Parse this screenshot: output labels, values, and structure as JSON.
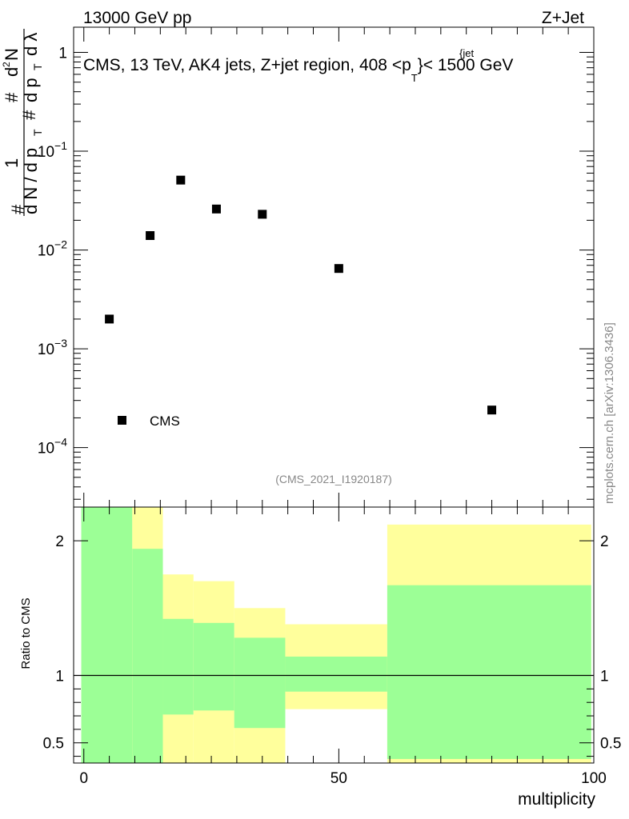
{
  "header": {
    "left_label": "13000 GeV pp",
    "right_label": "Z+Jet"
  },
  "chart_data": [
    {
      "type": "scatter",
      "panel": "main",
      "title": "CMS, 13 TeV, AK4 jets, Z+jet region, 408 <p",
      "title_super": "{jet",
      "title_sub": "T",
      "title_end": "}< 1500 GeV",
      "ylabel_parts": {
        "hash1": "#",
        "one": "1",
        "dN": "d N / d p",
        "sub1": "T",
        "hash2": "#",
        "dpT": "d p",
        "sub2": "T",
        "d2N": "d",
        "two": "2",
        "N": "N",
        "dlambda": "d λ"
      },
      "y_scale": "log",
      "ylim": [
        2.5e-05,
        1.8
      ],
      "xlim": [
        -2,
        100
      ],
      "y_ticks": [
        {
          "value": 0.0001,
          "base": "10",
          "exp": "−4"
        },
        {
          "value": 0.001,
          "base": "10",
          "exp": "−3"
        },
        {
          "value": 0.01,
          "base": "10",
          "exp": "−2"
        },
        {
          "value": 0.1,
          "base": "10",
          "exp": "−1"
        },
        {
          "value": 1,
          "base": "1",
          "exp": ""
        }
      ],
      "series": [
        {
          "name": "CMS",
          "color": "#000000",
          "marker": "square",
          "x": [
            5,
            13,
            19,
            26,
            35,
            50,
            80
          ],
          "y": [
            0.002,
            0.014,
            0.051,
            0.026,
            0.023,
            0.0065,
            0.00024
          ]
        }
      ],
      "legend_position": "bottom-left",
      "annotation": "(CMS_2021_I1920187)",
      "side_label": "mcplots.cern.ch [arXiv:1306.3436]"
    },
    {
      "type": "area",
      "panel": "ratio",
      "ylabel": "Ratio to CMS",
      "xlabel": "multiplicity",
      "xlim": [
        -2,
        100
      ],
      "ylim": [
        0.35,
        2.25
      ],
      "x_ticks": [
        0,
        50,
        100
      ],
      "y_ticks": [
        0.5,
        1,
        2
      ],
      "reference_line": 1,
      "bands": [
        {
          "x0": -0.5,
          "x1": 9.5,
          "green_lo": 0.35,
          "green_hi": 2.25,
          "yellow_lo": 0.35,
          "yellow_hi": 2.25
        },
        {
          "x0": 9.5,
          "x1": 15.5,
          "green_lo": 0.35,
          "green_hi": 1.94,
          "yellow_lo": 0.35,
          "yellow_hi": 2.25
        },
        {
          "x0": 15.5,
          "x1": 21.5,
          "green_lo": 0.71,
          "green_hi": 1.42,
          "yellow_lo": 0.35,
          "yellow_hi": 1.75
        },
        {
          "x0": 21.5,
          "x1": 29.5,
          "green_lo": 0.74,
          "green_hi": 1.39,
          "yellow_lo": 0.35,
          "yellow_hi": 1.7
        },
        {
          "x0": 29.5,
          "x1": 39.5,
          "green_lo": 0.61,
          "green_hi": 1.28,
          "yellow_lo": 0.35,
          "yellow_hi": 1.5
        },
        {
          "x0": 39.5,
          "x1": 59.5,
          "green_lo": 0.88,
          "green_hi": 1.14,
          "yellow_lo": 0.75,
          "yellow_hi": 1.38
        },
        {
          "x0": 59.5,
          "x1": 99.5,
          "green_lo": 0.38,
          "green_hi": 1.67,
          "yellow_lo": 0.35,
          "yellow_hi": 2.12
        }
      ],
      "colors": {
        "green": "#9cff96",
        "yellow": "#ffff9c"
      }
    }
  ]
}
